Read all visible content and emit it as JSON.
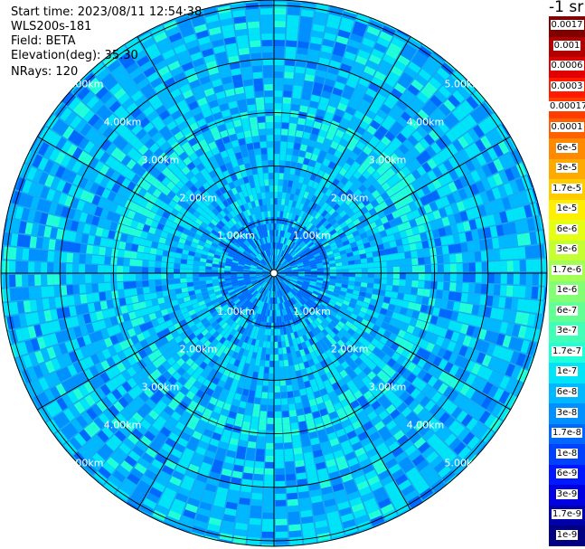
{
  "header": {
    "start_time": "Start time: 2023/08/11 12:54:38",
    "instrument": "WLS200s-181",
    "field": "Field: BETA",
    "elevation": "Elevation(deg): 35.30",
    "nrays": "NRays: 120"
  },
  "colorbar": {
    "unit": "-1 sr",
    "labels": [
      "0.0017",
      "0.001",
      "0.0006",
      "0.0003",
      "0.00017",
      "0.0001",
      "6e-5",
      "3e-5",
      "1.7e-5",
      "1e-5",
      "6e-6",
      "3e-6",
      "1.7e-6",
      "1e-6",
      "6e-7",
      "3e-7",
      "1.7e-7",
      "1e-7",
      "6e-8",
      "3e-8",
      "1.7e-8",
      "1e-8",
      "6e-9",
      "3e-9",
      "1.7e-9",
      "1e-9"
    ],
    "colors": [
      "#800000",
      "#b00000",
      "#e00000",
      "#ff1a00",
      "#ff3d00",
      "#ff6000",
      "#ff8a00",
      "#ffaa00",
      "#ffcc00",
      "#ffee00",
      "#e4ff14",
      "#c4ff33",
      "#a3ff54",
      "#82ff75",
      "#62ff95",
      "#41ffb6",
      "#20ffd7",
      "#00e4f8",
      "#00b8ff",
      "#0090ff",
      "#0068ff",
      "#0040ff",
      "#0018ff",
      "#0000e0",
      "#0000a8",
      "#000080"
    ]
  },
  "chart_data": {
    "type": "heatmap",
    "projection": "polar (PPI)",
    "field": "BETA",
    "n_rays": 120,
    "range_rings_km": [
      1.0,
      2.0,
      3.0,
      4.0,
      5.0
    ],
    "ring_labels": [
      "1.00km",
      "2.00km",
      "3.00km",
      "4.00km",
      "5.00km"
    ],
    "spokes_deg": [
      0,
      30,
      60,
      90,
      120,
      150,
      180,
      210,
      240,
      270,
      300,
      330
    ],
    "max_range_km": 5.0,
    "colorbar_range": [
      1e-09,
      0.0017
    ],
    "dominant_colors": [
      "#00e4f8",
      "#00b8ff",
      "#0090ff",
      "#0068ff",
      "#20ffd7"
    ]
  }
}
